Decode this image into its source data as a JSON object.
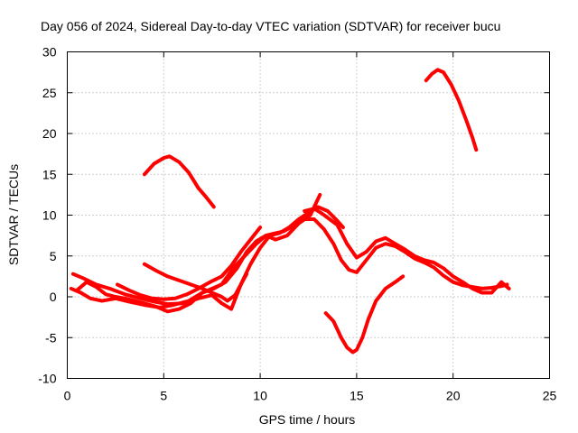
{
  "chart_data": {
    "type": "line",
    "title": "Day 056 of 2024, Sidereal Day-to-day VTEC variation (SDTVAR) for receiver bucu",
    "xlabel": "GPS time / hours",
    "ylabel": "SDTVAR / TECUs",
    "xlim": [
      0,
      25
    ],
    "ylim": [
      -10,
      30
    ],
    "x_ticks": [
      "0",
      "5",
      "10",
      "15",
      "20",
      "25"
    ],
    "y_ticks": [
      "-10",
      "-5",
      "0",
      "5",
      "10",
      "15",
      "20",
      "25",
      "30"
    ],
    "grid": true,
    "color": "#ff0000",
    "series": [
      {
        "name": "arc-1",
        "x": [
          4.0,
          4.5,
          5.0,
          5.3,
          5.8,
          6.3,
          6.8,
          7.2,
          7.6
        ],
        "y": [
          15.0,
          16.3,
          17.0,
          17.2,
          16.5,
          15.2,
          13.3,
          12.2,
          11.0
        ]
      },
      {
        "name": "arc-2",
        "x": [
          18.6,
          18.9,
          19.2,
          19.5,
          19.9,
          20.3,
          20.7,
          21.0,
          21.2
        ],
        "y": [
          26.5,
          27.3,
          27.8,
          27.5,
          26.0,
          24.0,
          21.5,
          19.5,
          18.0
        ]
      },
      {
        "name": "arc-3",
        "x": [
          0.2,
          0.7,
          1.2,
          1.8,
          2.5,
          3.2,
          4.0,
          4.8,
          5.5,
          6.3,
          7.0,
          7.5,
          8.0,
          8.6,
          9.2,
          9.8,
          10.3,
          10.8,
          11.2,
          11.8,
          12.3,
          12.8,
          13.3,
          13.8,
          14.2,
          14.6,
          15.0,
          15.5,
          16.0,
          16.5,
          17.0,
          17.5,
          18.0,
          18.5,
          19.0,
          19.5,
          20.0,
          20.5,
          21.0,
          21.5,
          22.0,
          22.5,
          22.8
        ],
        "y": [
          1.0,
          0.5,
          -0.2,
          -0.5,
          -0.2,
          -0.6,
          -1.0,
          -1.3,
          -1.0,
          -0.5,
          0.5,
          1.0,
          1.5,
          3.5,
          5.0,
          6.5,
          7.5,
          7.8,
          8.0,
          8.8,
          9.5,
          9.5,
          8.3,
          6.5,
          4.5,
          3.3,
          3.0,
          4.5,
          6.0,
          6.5,
          6.2,
          5.5,
          4.7,
          4.2,
          3.6,
          2.6,
          1.8,
          1.4,
          1.2,
          1.0,
          1.1,
          1.3,
          1.5
        ]
      },
      {
        "name": "arc-4",
        "x": [
          0.3,
          0.8,
          1.5,
          2.2,
          3.0,
          3.8,
          4.5,
          5.2,
          6.0,
          6.8,
          7.5,
          8.0,
          8.5,
          9.0,
          9.5,
          10.0,
          10.5,
          11.0,
          11.5,
          12.0,
          12.5,
          13.0,
          13.5,
          14.0,
          14.3
        ],
        "y": [
          2.8,
          2.3,
          1.5,
          1.0,
          0.3,
          -0.2,
          -0.6,
          -0.9,
          -0.8,
          -0.2,
          0.2,
          -0.8,
          -1.5,
          1.5,
          4.0,
          6.0,
          7.5,
          7.8,
          8.5,
          9.5,
          10.3,
          11.0,
          10.5,
          9.3,
          8.5
        ]
      },
      {
        "name": "arc-5",
        "x": [
          0.5,
          1.0,
          1.5,
          2.0,
          2.5,
          3.0,
          3.5,
          4.0,
          4.6,
          5.2,
          5.8,
          6.4,
          7.0,
          7.6,
          8.2,
          8.8,
          9.3,
          9.8,
          10.3,
          10.8,
          11.4,
          12.0,
          12.6,
          13.1
        ],
        "y": [
          0.8,
          1.8,
          1.2,
          0.3,
          0.0,
          -0.2,
          -0.5,
          -0.8,
          -1.2,
          -1.8,
          -1.5,
          -0.8,
          0.5,
          1.0,
          1.8,
          3.5,
          5.5,
          6.8,
          7.5,
          7.0,
          7.5,
          9.0,
          10.0,
          12.5
        ]
      },
      {
        "name": "arc-6",
        "x": [
          4.0,
          4.6,
          5.2,
          5.8,
          6.4,
          7.0,
          7.5,
          8.0,
          8.3,
          8.7,
          9.0,
          9.3
        ],
        "y": [
          4.0,
          3.2,
          2.5,
          2.0,
          1.5,
          1.0,
          0.5,
          0.0,
          -0.5,
          0.2,
          1.5,
          2.8
        ]
      },
      {
        "name": "arc-7",
        "x": [
          2.6,
          3.2,
          3.8,
          4.4,
          5.0,
          5.6,
          6.2,
          6.8,
          7.4,
          8.0,
          8.5,
          9.0,
          9.5,
          10.0
        ],
        "y": [
          1.5,
          0.8,
          0.2,
          -0.2,
          -0.3,
          -0.2,
          0.3,
          1.0,
          1.8,
          2.5,
          3.8,
          5.5,
          7.0,
          8.5
        ]
      },
      {
        "name": "arc-8",
        "x": [
          12.3,
          12.8,
          13.2,
          13.6,
          14.0,
          14.5,
          15.0,
          15.5,
          16.0,
          16.5,
          17.0,
          17.5,
          18.0,
          18.5,
          19.0,
          19.5,
          20.0,
          20.5,
          21.0,
          21.5,
          22.0,
          22.5,
          22.9
        ],
        "y": [
          10.5,
          10.8,
          10.2,
          9.5,
          8.8,
          6.5,
          4.8,
          5.5,
          6.8,
          7.2,
          6.5,
          5.8,
          5.0,
          4.5,
          4.2,
          3.5,
          2.5,
          1.8,
          1.0,
          0.5,
          0.5,
          1.8,
          1.0
        ]
      },
      {
        "name": "arc-9",
        "x": [
          13.4,
          13.8,
          14.2,
          14.5,
          14.8,
          15.0,
          15.3,
          15.6,
          16.0,
          16.5,
          17.0,
          17.4
        ],
        "y": [
          -2.0,
          -3.0,
          -5.0,
          -6.2,
          -6.8,
          -6.5,
          -5.0,
          -2.8,
          -0.5,
          1.0,
          1.8,
          2.5
        ]
      }
    ]
  }
}
